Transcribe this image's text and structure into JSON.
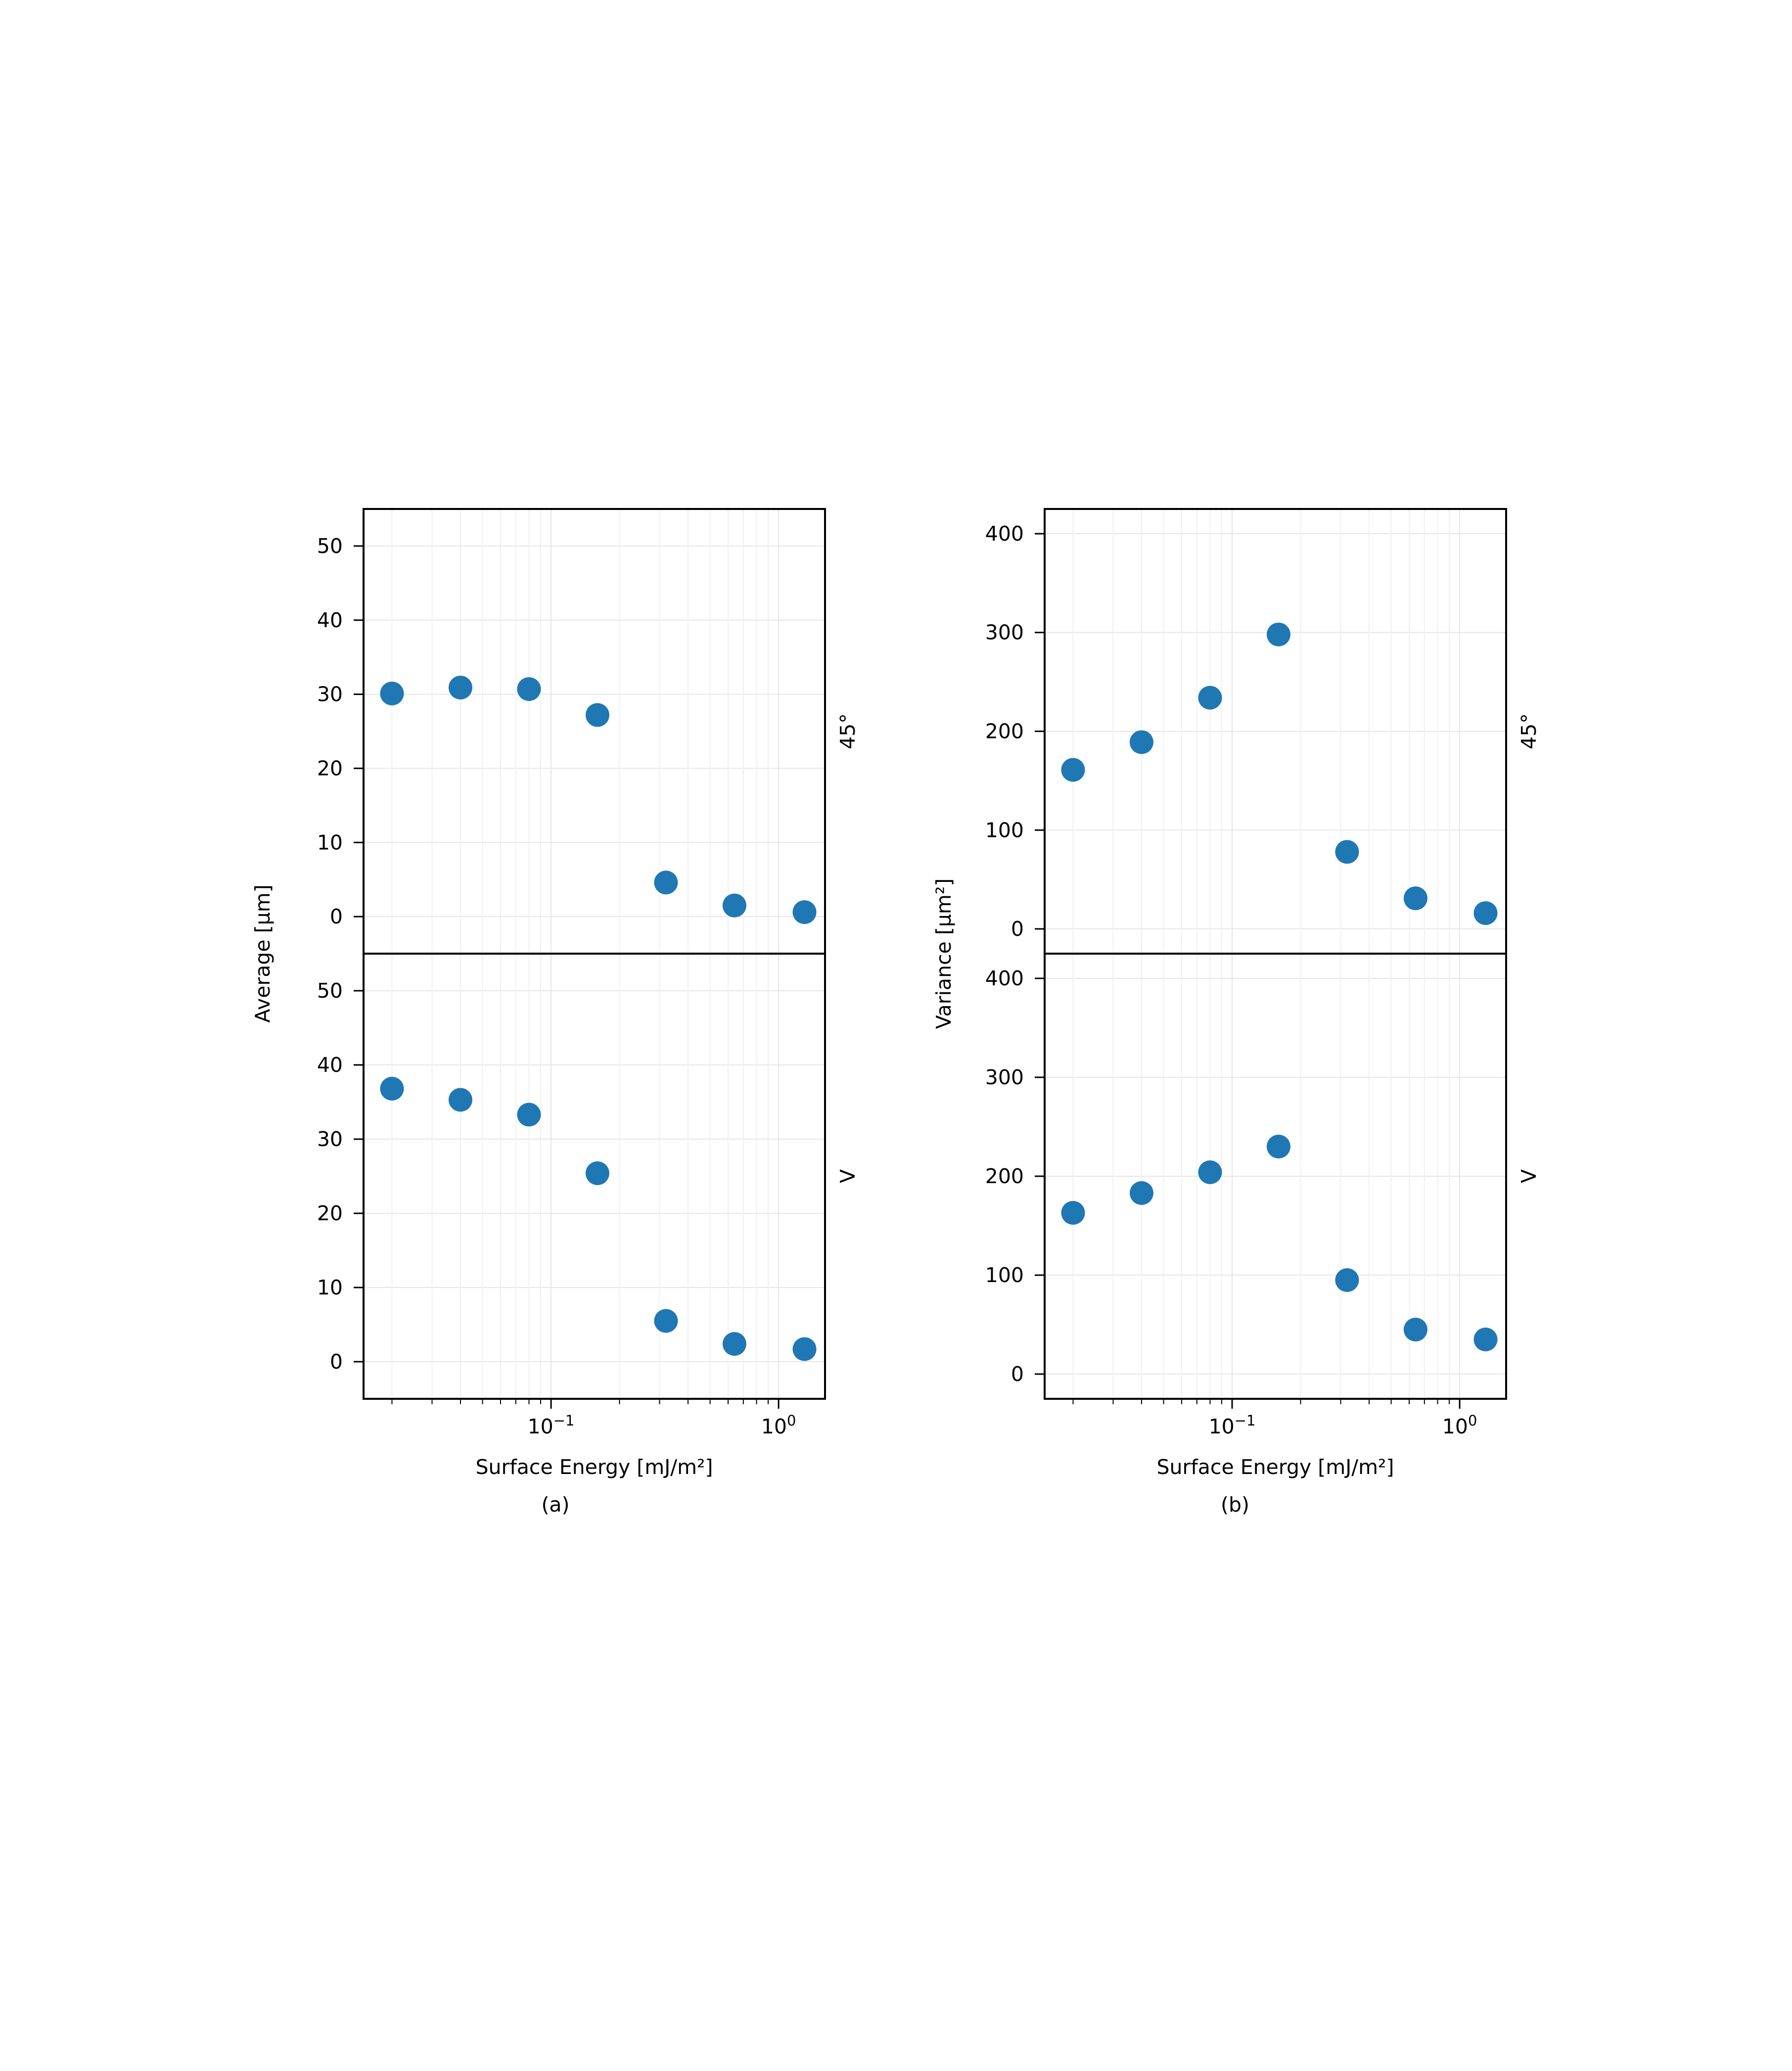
{
  "figure": {
    "panel_a_caption": "(a)",
    "panel_b_caption": "(b)",
    "row_labels": [
      "45$^\\circ$",
      "V"
    ],
    "row_labels_display": [
      "45°",
      "V"
    ]
  },
  "chart_data": [
    {
      "id": "a",
      "type": "scatter",
      "ylabel": "Average [µm]",
      "xlabel": "Surface Energy [mJ/m²]",
      "xscale": "log",
      "xlim": [
        0.015,
        1.6
      ],
      "xticks": [
        {
          "value": 0.1,
          "base": "10",
          "exp": "−1"
        },
        {
          "value": 1,
          "base": "10",
          "exp": "0"
        }
      ],
      "ylim": [
        -5,
        55
      ],
      "yticks": [
        0,
        10,
        20,
        30,
        40,
        50
      ],
      "grid": true,
      "color": "#1f77b4",
      "subplots": [
        {
          "row_label": "45°",
          "x": [
            0.02,
            0.04,
            0.08,
            0.16,
            0.32,
            0.64,
            1.3
          ],
          "y": [
            30.1,
            30.9,
            30.7,
            27.2,
            4.6,
            1.5,
            0.6
          ]
        },
        {
          "row_label": "V",
          "x": [
            0.02,
            0.04,
            0.08,
            0.16,
            0.32,
            0.64,
            1.3
          ],
          "y": [
            36.8,
            35.3,
            33.3,
            25.4,
            5.5,
            2.4,
            1.7
          ]
        }
      ]
    },
    {
      "id": "b",
      "type": "scatter",
      "ylabel": "Variance [µm²]",
      "xlabel": "Surface Energy [mJ/m²]",
      "xscale": "log",
      "xlim": [
        0.015,
        1.6
      ],
      "xticks": [
        {
          "value": 0.1,
          "base": "10",
          "exp": "−1"
        },
        {
          "value": 1,
          "base": "10",
          "exp": "0"
        }
      ],
      "ylim": [
        -25,
        425
      ],
      "yticks": [
        0,
        100,
        200,
        300,
        400
      ],
      "grid": true,
      "color": "#1f77b4",
      "subplots": [
        {
          "row_label": "45°",
          "x": [
            0.02,
            0.04,
            0.08,
            0.16,
            0.32,
            0.64,
            1.3
          ],
          "y": [
            161,
            189,
            234,
            298,
            78,
            31,
            16
          ]
        },
        {
          "row_label": "V",
          "x": [
            0.02,
            0.04,
            0.08,
            0.16,
            0.32,
            0.64,
            1.3
          ],
          "y": [
            163,
            183,
            204,
            230,
            95,
            45,
            35
          ]
        }
      ]
    }
  ]
}
